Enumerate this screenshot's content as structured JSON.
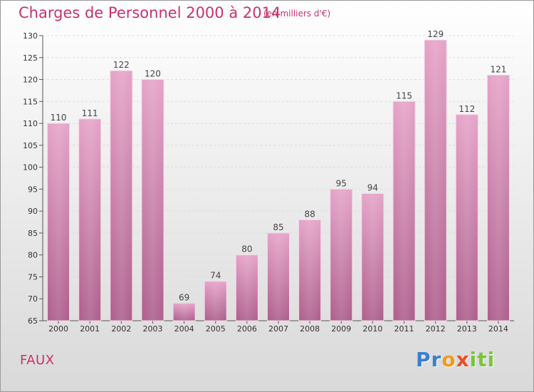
{
  "title": "Charges de Personnel 2000 à 2014",
  "subtitle": "(en milliers d'€)",
  "commune": "FAUX",
  "logo": {
    "letters": [
      "P",
      "r",
      "o",
      "x",
      "i",
      "t",
      "i"
    ],
    "colors": [
      "#3a7fd0",
      "#3a7fd0",
      "#f29a1c",
      "#e94e2a",
      "#7cc242",
      "#7cc242",
      "#7cc242"
    ]
  },
  "chart_data": {
    "type": "bar",
    "categories": [
      "2000",
      "2001",
      "2002",
      "2003",
      "2004",
      "2005",
      "2006",
      "2007",
      "2008",
      "2009",
      "2010",
      "2011",
      "2012",
      "2013",
      "2014"
    ],
    "values": [
      110,
      111,
      122,
      120,
      69,
      74,
      80,
      85,
      88,
      95,
      94,
      115,
      129,
      112,
      121
    ],
    "ylim": [
      65,
      130
    ],
    "yticks": [
      65,
      70,
      75,
      80,
      85,
      90,
      95,
      100,
      105,
      110,
      115,
      120,
      125,
      130
    ],
    "grid": true,
    "bar_color": "#c76e9e"
  }
}
